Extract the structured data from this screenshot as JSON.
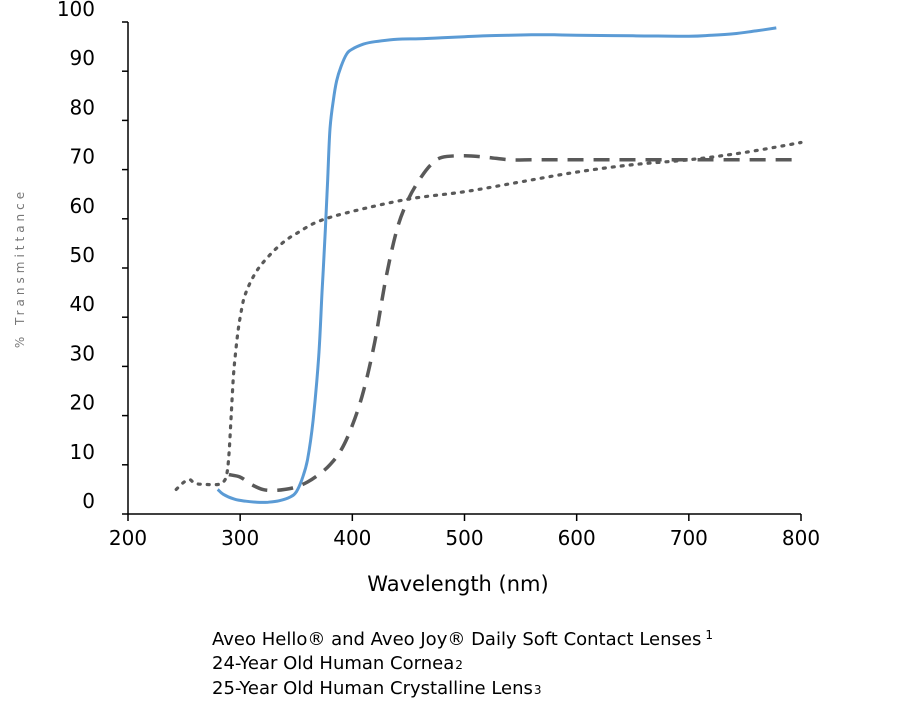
{
  "chart_data": {
    "type": "line",
    "title": "",
    "xlabel": "Wavelength (nm)",
    "ylabel": "% Transmittance",
    "xlim": [
      200,
      800
    ],
    "ylim": [
      0,
      100
    ],
    "xticks": [
      "200",
      "300",
      "400",
      "500",
      "600",
      "700",
      "800"
    ],
    "yticks": [
      "0",
      "10",
      "20",
      "30",
      "40",
      "50",
      "60",
      "70",
      "80",
      "90",
      "100"
    ],
    "grid": false,
    "legend_position": "bottom",
    "series": [
      {
        "name": "Aveo Hello® and Aveo Joy® Daily Soft Contact Lenses",
        "footnote": "1",
        "color": "#5B9BD5",
        "style": "solid",
        "x": [
          280,
          285,
          295,
          305,
          315,
          325,
          335,
          345,
          350,
          355,
          360,
          365,
          370,
          373,
          376,
          378,
          380,
          383,
          386,
          390,
          395,
          400,
          410,
          420,
          440,
          460,
          480,
          500,
          520,
          540,
          560,
          580,
          600,
          650,
          700,
          720,
          740,
          760,
          778
        ],
        "y": [
          5,
          4,
          3,
          2.6,
          2.4,
          2.4,
          2.7,
          3.5,
          4.5,
          7,
          11,
          19,
          32,
          45,
          58,
          68,
          78,
          84,
          88,
          91,
          93.5,
          94.5,
          95.5,
          96,
          96.5,
          96.6,
          96.8,
          97,
          97.2,
          97.3,
          97.4,
          97.4,
          97.3,
          97.2,
          97.1,
          97.3,
          97.6,
          98.2,
          98.8
        ]
      },
      {
        "name": "24-Year Old Human Cornea",
        "footnote": "2",
        "color": "#595959",
        "style": "dotted",
        "x": [
          243,
          250,
          255,
          260,
          270,
          280,
          285,
          288,
          290,
          292,
          294,
          296,
          298,
          300,
          303,
          306,
          310,
          315,
          320,
          330,
          340,
          350,
          370,
          400,
          450,
          500,
          550,
          600,
          650,
          700,
          750,
          800
        ],
        "y": [
          5,
          6.5,
          7,
          6.2,
          6,
          6,
          6.5,
          8,
          12,
          20,
          28,
          33,
          37,
          40,
          43.5,
          45.5,
          47.5,
          49.5,
          51,
          53.5,
          55.5,
          57,
          59.5,
          61.5,
          64,
          65.5,
          67.5,
          69.5,
          71,
          72,
          73.5,
          75.5
        ]
      },
      {
        "name": "25-Year Old Human Crystalline Lens",
        "footnote": "3",
        "color": "#595959",
        "style": "dashed",
        "x": [
          290,
          300,
          310,
          320,
          330,
          340,
          350,
          360,
          370,
          380,
          390,
          400,
          410,
          420,
          430,
          440,
          450,
          460,
          470,
          480,
          500,
          520,
          540,
          560,
          580,
          600,
          700,
          800
        ],
        "y": [
          8,
          7.5,
          6,
          5,
          4.8,
          5,
          5.5,
          6.5,
          8,
          10,
          13,
          18,
          25,
          35,
          48,
          58,
          64,
          68,
          71,
          72.5,
          72.8,
          72.5,
          72,
          72,
          72,
          72,
          72,
          72
        ]
      }
    ]
  }
}
